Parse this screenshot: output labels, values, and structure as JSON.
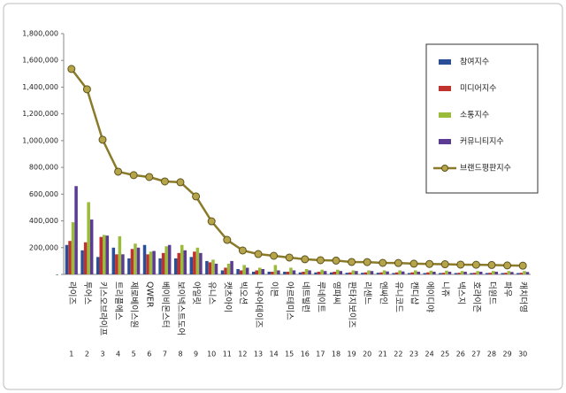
{
  "chart_data": {
    "type": "bar",
    "categories": [
      "라이즈",
      "투어스",
      "키스오브라이프",
      "트리플에스",
      "제로베이스원",
      "QWER",
      "베이비몬스터",
      "보이넥스트도어",
      "아일릿",
      "유니스",
      "캣츠아이",
      "빅오션",
      "나우어데이즈",
      "이븐",
      "아르테미스",
      "네트빌런",
      "루네이트",
      "영파씨",
      "판타지보이즈",
      "리센느",
      "엔싸인",
      "유니코드",
      "캔디샵",
      "에이디야",
      "니쥬",
      "넥스지",
      "호라이즌",
      "더윈드",
      "파우",
      "캐치더영"
    ],
    "ranks": [
      1,
      2,
      3,
      4,
      5,
      6,
      7,
      8,
      9,
      10,
      11,
      12,
      13,
      14,
      15,
      16,
      17,
      18,
      19,
      20,
      21,
      22,
      23,
      24,
      25,
      26,
      27,
      28,
      29,
      30
    ],
    "series": [
      {
        "name": "참여지수",
        "color": "#2a4f96",
        "values": [
          220000,
          180000,
          130000,
          200000,
          120000,
          220000,
          120000,
          120000,
          130000,
          100000,
          30000,
          40000,
          20000,
          20000,
          20000,
          15000,
          15000,
          15000,
          12000,
          12000,
          12000,
          10000,
          10000,
          10000,
          10000,
          10000,
          10000,
          10000,
          10000,
          10000
        ]
      },
      {
        "name": "미디어지수",
        "color": "#c0322d",
        "values": [
          250000,
          240000,
          280000,
          150000,
          190000,
          150000,
          160000,
          160000,
          170000,
          90000,
          50000,
          30000,
          30000,
          20000,
          20000,
          20000,
          20000,
          20000,
          15000,
          15000,
          15000,
          15000,
          15000,
          15000,
          12000,
          12000,
          12000,
          12000,
          12000,
          12000
        ]
      },
      {
        "name": "소통지수",
        "color": "#9bbb3b",
        "values": [
          390000,
          540000,
          295000,
          285000,
          230000,
          170000,
          210000,
          220000,
          200000,
          110000,
          80000,
          70000,
          50000,
          70000,
          50000,
          40000,
          35000,
          35000,
          30000,
          30000,
          30000,
          30000,
          30000,
          28000,
          28000,
          25000,
          25000,
          25000,
          25000,
          25000
        ]
      },
      {
        "name": "커뮤니티지수",
        "color": "#5c3b92",
        "values": [
          660000,
          410000,
          290000,
          150000,
          200000,
          175000,
          220000,
          180000,
          160000,
          80000,
          100000,
          50000,
          40000,
          30000,
          30000,
          30000,
          25000,
          25000,
          25000,
          25000,
          22000,
          22000,
          20000,
          20000,
          20000,
          20000,
          20000,
          20000,
          18000,
          18000
        ]
      },
      {
        "name": "브랜드평판지수",
        "type": "line",
        "color": "#8a7a2a",
        "values": [
          1536000,
          1384000,
          1007000,
          768000,
          742000,
          728000,
          695000,
          689000,
          583000,
          397000,
          258000,
          179000,
          152000,
          139000,
          126000,
          113000,
          106000,
          103000,
          93000,
          92000,
          86000,
          85000,
          80000,
          78000,
          76000,
          73000,
          72000,
          70000,
          67000,
          65000
        ]
      }
    ],
    "ylim": [
      0,
      1800000
    ],
    "yticks": [
      {
        "value": 0,
        "label": "-"
      },
      {
        "value": 200000,
        "label": "200,000"
      },
      {
        "value": 400000,
        "label": "400,000"
      },
      {
        "value": 600000,
        "label": "600,000"
      },
      {
        "value": 800000,
        "label": "800,000"
      },
      {
        "value": 1000000,
        "label": "1,000,000"
      },
      {
        "value": 1200000,
        "label": "1,200,000"
      },
      {
        "value": 1400000,
        "label": "1,400,000"
      },
      {
        "value": 1600000,
        "label": "1,600,000"
      },
      {
        "value": 1800000,
        "label": "1,800,000"
      }
    ],
    "legend": "right"
  }
}
